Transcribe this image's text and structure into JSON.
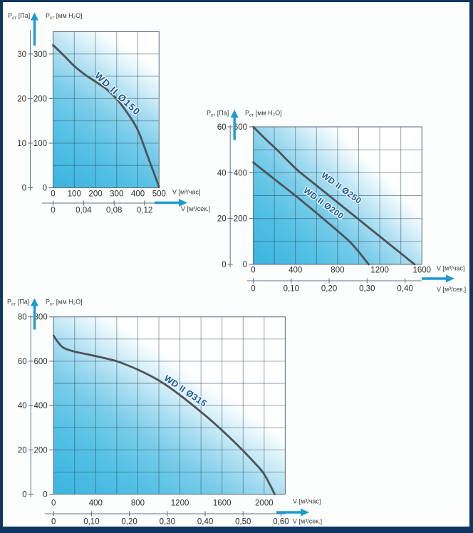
{
  "page": {
    "description": "Fan performance curves WD II - pressure vs flow charts",
    "frame_color": "#0f3563",
    "background": "#fcfdfd"
  },
  "style": {
    "grid_color": "rgba(35,64,86,0.52)",
    "plot_border_color": "#5f7486",
    "curve_color": "#4e5356",
    "curve_label_color": "#16599d",
    "arrow_color": "#1d9ad2",
    "text_color": "#2f2f2f",
    "axis_text_color": "#3d3d3d",
    "gradient_stops": [
      {
        "at": "0%",
        "color": "#3ab4df"
      },
      {
        "at": "30%",
        "color": "#55c1e5"
      },
      {
        "at": "50%",
        "color": "#79cce9"
      },
      {
        "at": "66%",
        "color": "#a8ddf1"
      },
      {
        "at": "80%",
        "color": "#d8f0f9"
      },
      {
        "at": "92%",
        "color": "#ffffff"
      }
    ]
  },
  "chart_data": [
    {
      "id": "chart-wd150",
      "type": "line",
      "title": "WD II Ø150 fan curve",
      "xlim": [
        0,
        500
      ],
      "ylim": [
        0,
        350
      ],
      "grid_step_x": 100,
      "grid_step_y": 50,
      "y_axis_outer": {
        "label_base": "Р",
        "label_sub": "ст",
        "label_unit": "[Па]",
        "tick_labels": [
          "0",
          "10",
          "20",
          "30"
        ],
        "tick_values": [
          0,
          100,
          200,
          300
        ]
      },
      "y_axis_inner": {
        "label_base": "Р",
        "label_sub": "ст",
        "label_unit": "[мм H₂O]",
        "tick_labels": [
          "0",
          "100",
          "200",
          "300"
        ],
        "tick_values": [
          0,
          100,
          200,
          300
        ]
      },
      "x_axis_hour": {
        "label": "V [м³/час]",
        "tick_labels": [
          "0",
          "100",
          "200",
          "300",
          "400",
          "500"
        ],
        "tick_values": [
          0,
          100,
          200,
          300,
          400,
          500
        ]
      },
      "x_axis_sec": {
        "label": "V [м³/сек.]",
        "tick_labels": [
          "0",
          "0,04",
          "0,08",
          "0,12"
        ],
        "tick_values_hour": [
          0,
          144,
          288,
          432
        ]
      },
      "series": [
        {
          "name": "WD II Ø150",
          "points": [
            [
              0,
              320
            ],
            [
              50,
              297
            ],
            [
              100,
              273
            ],
            [
              150,
              254
            ],
            [
              200,
              238
            ],
            [
              250,
              222
            ],
            [
              300,
              199
            ],
            [
              350,
              168
            ],
            [
              400,
              129
            ],
            [
              450,
              66
            ],
            [
              500,
              2
            ]
          ]
        }
      ]
    },
    {
      "id": "chart-wd250-200",
      "type": "line",
      "title": "WD II Ø250 and WD II Ø200 fan curves",
      "xlim": [
        0,
        1600
      ],
      "ylim": [
        0,
        600
      ],
      "grid_step_x": 200,
      "grid_step_y": 100,
      "y_axis_outer": {
        "label_base": "Р",
        "label_sub": "ст",
        "label_unit": "[Па]",
        "tick_labels": [
          "0",
          "20",
          "40",
          "60"
        ],
        "tick_values": [
          0,
          200,
          400,
          600
        ]
      },
      "y_axis_inner": {
        "label_base": "Р",
        "label_sub": "ст",
        "label_unit": "[мм H₂O]",
        "tick_labels": [
          "0",
          "200",
          "400",
          "600"
        ],
        "tick_values": [
          0,
          200,
          400,
          600
        ]
      },
      "x_axis_hour": {
        "label": "V [м³/час]",
        "tick_labels": [
          "0",
          "400",
          "800",
          "1200",
          "1600"
        ],
        "tick_values": [
          0,
          400,
          800,
          1200,
          1600
        ]
      },
      "x_axis_sec": {
        "label": "V [м³/сек.]",
        "tick_labels": [
          "0",
          "0,10",
          "0,20",
          "0,30",
          "0,40"
        ],
        "tick_values_hour": [
          0,
          360,
          720,
          1080,
          1440
        ]
      },
      "series": [
        {
          "name": "WD II Ø250",
          "points": [
            [
              0,
              600
            ],
            [
              120,
              545
            ],
            [
              225,
              500
            ],
            [
              330,
              451
            ],
            [
              430,
              407
            ],
            [
              600,
              344
            ],
            [
              800,
              270
            ],
            [
              1000,
              196
            ],
            [
              1200,
              122
            ],
            [
              1400,
              48
            ],
            [
              1530,
              0
            ]
          ]
        },
        {
          "name": "WD II Ø200",
          "points": [
            [
              0,
              445
            ],
            [
              100,
              408
            ],
            [
              200,
              372
            ],
            [
              300,
              336
            ],
            [
              400,
              300
            ],
            [
              500,
              262
            ],
            [
              600,
              224
            ],
            [
              700,
              185
            ],
            [
              800,
              146
            ],
            [
              913,
              100
            ],
            [
              1000,
              55
            ],
            [
              1095,
              0
            ]
          ]
        }
      ]
    },
    {
      "id": "chart-wd315",
      "type": "line",
      "title": "WD II Ø315 fan curve",
      "xlim": [
        0,
        2200
      ],
      "ylim": [
        0,
        800
      ],
      "grid_step_x": 200,
      "grid_step_y": 100,
      "y_axis_outer": {
        "label_base": "Р",
        "label_sub": "ст",
        "label_unit": "[Па]",
        "tick_labels": [
          "0",
          "20",
          "40",
          "60",
          "80"
        ],
        "tick_values": [
          0,
          200,
          400,
          600,
          800
        ]
      },
      "y_axis_inner": {
        "label_base": "Р",
        "label_sub": "ст",
        "label_unit": "[мм H₂O]",
        "tick_labels": [
          "0",
          "200",
          "400",
          "600",
          "800"
        ],
        "tick_values": [
          0,
          200,
          400,
          600,
          800
        ]
      },
      "x_axis_hour": {
        "label": "V [м³/час]",
        "tick_labels": [
          "0",
          "400",
          "800",
          "1200",
          "1600",
          "2000"
        ],
        "tick_values": [
          0,
          400,
          800,
          1200,
          1600,
          2000
        ]
      },
      "x_axis_sec": {
        "label": "V [м³/сек.]",
        "tick_labels": [
          "0",
          "0,10",
          "0,20",
          "0,30",
          "0,40",
          "0,50",
          "0,60"
        ],
        "tick_values_hour": [
          0,
          360,
          720,
          1080,
          1440,
          1800,
          2160
        ]
      },
      "series": [
        {
          "name": "WD II Ø315",
          "points": [
            [
              0,
              715
            ],
            [
              50,
              681
            ],
            [
              100,
              659
            ],
            [
              200,
              643
            ],
            [
              300,
              633
            ],
            [
              400,
              623
            ],
            [
              500,
              612
            ],
            [
              600,
              600
            ],
            [
              700,
              582
            ],
            [
              800,
              562
            ],
            [
              900,
              539
            ],
            [
              1000,
              513
            ],
            [
              1100,
              482
            ],
            [
              1200,
              447
            ],
            [
              1300,
              410
            ],
            [
              1400,
              371
            ],
            [
              1500,
              331
            ],
            [
              1600,
              288
            ],
            [
              1700,
              243
            ],
            [
              1800,
              196
            ],
            [
              1900,
              146
            ],
            [
              2000,
              90
            ],
            [
              2100,
              0
            ]
          ]
        }
      ]
    }
  ]
}
